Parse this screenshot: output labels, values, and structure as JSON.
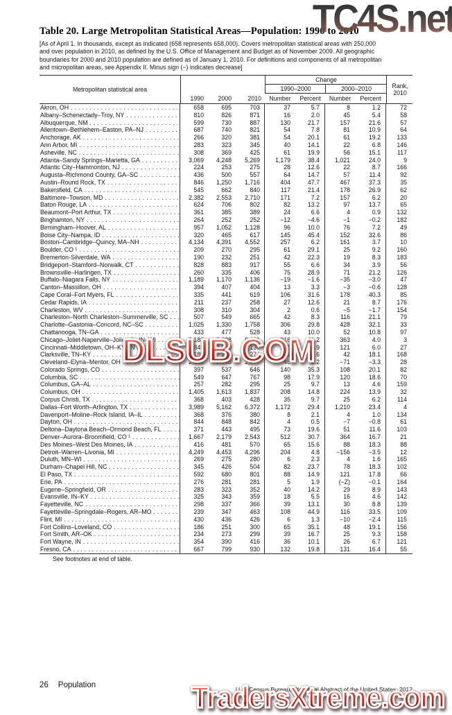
{
  "watermarks": {
    "top": "TC4S.net",
    "middle": "DLSUB.COM",
    "bottom": "TradersXtreme.com"
  },
  "title": "Table 20. Large Metropolitan Statistical Areas—Population: 1990 to 2010",
  "note_lines": [
    "[As of April 1. In thousands, except as indicated (658 represents 658,000). Covers metropolitan statistical areas with 250,000",
    "and over population in 2010, as defined by the U.S. Office of Management and Budget as of November 2009. All geographic",
    "boundaries for 2000 and 2010 population are defined as of January 1, 2010. For definitions and components of all metropolitan",
    "and micropolitan areas, see Appendix II. Minus sign (−) indicates decrease]"
  ],
  "table": {
    "header": {
      "area": "Metropolitan statistical area",
      "change": "Change",
      "span_1990_2000": "1990–2000",
      "span_2000_2010": "2000–2010",
      "y1990": "1990",
      "y2000": "2000",
      "y2010": "2010",
      "number": "Number",
      "percent": "Percent",
      "rank_line1": "Rank,",
      "rank_line2": "2010"
    },
    "rows": [
      [
        "Akron, OH",
        "658",
        "695",
        "703",
        "37",
        "5.7",
        "8",
        "1.2",
        "72"
      ],
      [
        "Albany–Schenectady–Troy, NY",
        "810",
        "826",
        "871",
        "16",
        "2.0",
        "45",
        "5.4",
        "58"
      ],
      [
        "Albuquerque, NM",
        "599",
        "730",
        "887",
        "130",
        "21.7",
        "157",
        "21.6",
        "57"
      ],
      [
        "Allentown–Bethlehem–Easton, PA–NJ",
        "687",
        "740",
        "821",
        "54",
        "7.8",
        "81",
        "10.9",
        "64"
      ],
      [
        "Anchorage, AK",
        "266",
        "320",
        "381",
        "54",
        "20.1",
        "61",
        "19.2",
        "133"
      ],
      [
        "Ann Arbor, MI",
        "283",
        "323",
        "345",
        "40",
        "14.1",
        "22",
        "6.8",
        "146"
      ],
      [
        "Asheville, NC",
        "308",
        "369",
        "425",
        "61",
        "19.9",
        "56",
        "15.1",
        "117"
      ],
      [
        "Atlanta–Sandy Springs–Marietta, GA",
        "3,069",
        "4,248",
        "5,269",
        "1,179",
        "38.4",
        "1,021",
        "24.0",
        "9"
      ],
      [
        "Atlantic City–Hammonton, NJ",
        "224",
        "253",
        "275",
        "28",
        "12.6",
        "22",
        "8.7",
        "166"
      ],
      [
        "Augusta–Richmond County, GA–SC",
        "436",
        "500",
        "557",
        "64",
        "14.7",
        "57",
        "11.4",
        "92"
      ],
      [
        "Austin–Round Rock, TX",
        "846",
        "1,250",
        "1,716",
        "404",
        "47.7",
        "467",
        "37.3",
        "35"
      ],
      [
        "Bakersfield, CA",
        "545",
        "662",
        "840",
        "117",
        "21.4",
        "178",
        "26.9",
        "62"
      ],
      [
        "Baltimore–Towson, MD",
        "2,382",
        "2,553",
        "2,710",
        "171",
        "7.2",
        "157",
        "6.2",
        "20"
      ],
      [
        "Baton Rouge, LA",
        "624",
        "706",
        "802",
        "82",
        "13.2",
        "97",
        "13.7",
        "65"
      ],
      [
        "Beaumont–Port Arthur, TX",
        "361",
        "385",
        "389",
        "24",
        "6.6",
        "4",
        "0.9",
        "132"
      ],
      [
        "Binghamton, NY",
        "264",
        "252",
        "252",
        "−12",
        "−4.6",
        "−1",
        "−0.2",
        "182"
      ],
      [
        "Birmingham–Hoover, AL",
        "957",
        "1,052",
        "1,128",
        "96",
        "10.0",
        "76",
        "7.2",
        "49"
      ],
      [
        "Boise City–Nampa, ID",
        "320",
        "465",
        "617",
        "145",
        "45.4",
        "152",
        "32.6",
        "86"
      ],
      [
        "Boston–Cambridge–Quincy, MA–NH",
        "4,134",
        "4,391",
        "4,552",
        "257",
        "6.2",
        "161",
        "3.7",
        "10"
      ],
      [
        "Boulder, CO ¹",
        "209",
        "270",
        "295",
        "61",
        "29.1",
        "25",
        "9.2",
        "160"
      ],
      [
        "Bremerton-Silverdale, WA",
        "190",
        "232",
        "251",
        "42",
        "22.3",
        "19",
        "8.3",
        "183"
      ],
      [
        "Bridgeport–Stamford–Norwalk, CT",
        "828",
        "883",
        "917",
        "55",
        "6.6",
        "34",
        "3.9",
        "56"
      ],
      [
        "Brownsville–Harlingen, TX",
        "260",
        "335",
        "406",
        "75",
        "28.9",
        "71",
        "21.2",
        "126"
      ],
      [
        "Buffalo–Niagara Falls, NY",
        "1,189",
        "1,170",
        "1,136",
        "−19",
        "−1.6",
        "−35",
        "−3.0",
        "47"
      ],
      [
        "Canton–Massillon, OH",
        "394",
        "407",
        "404",
        "13",
        "3.3",
        "−3",
        "−0.6",
        "128"
      ],
      [
        "Cape Coral–Fort Myers, FL",
        "335",
        "441",
        "619",
        "106",
        "31.6",
        "178",
        "40.3",
        "85"
      ],
      [
        "Cedar Rapids, IA",
        "211",
        "237",
        "258",
        "27",
        "12.6",
        "21",
        "8.7",
        "176"
      ],
      [
        "Charleston, WV",
        "308",
        "310",
        "304",
        "2",
        "0.6",
        "−5",
        "−1.7",
        "154"
      ],
      [
        "Charleston–North Charleston–Summerville, SC",
        "507",
        "549",
        "665",
        "42",
        "8.3",
        "116",
        "21.1",
        "79"
      ],
      [
        "Charlotte–Gastonia–Concord, NC–SC",
        "1,025",
        "1,330",
        "1,758",
        "306",
        "29.8",
        "428",
        "32.1",
        "33"
      ],
      [
        "Chattanooga, TN–GA",
        "433",
        "477",
        "528",
        "43",
        "10.0",
        "52",
        "10.8",
        "97"
      ],
      [
        "Chicago–Joliet-Naperville–Joliet, IL–IN–WI",
        "8,182",
        "9,098",
        "9,461",
        "916",
        "11.2",
        "363",
        "4.0",
        "3"
      ],
      [
        "Cincinnati–Middletown, OH–KY–IN",
        "1,845",
        "2,010",
        "2,130",
        "165",
        "8.9",
        "121",
        "6.0",
        "27"
      ],
      [
        "Clarksville, TN–KY",
        "189",
        "232",
        "274",
        "43",
        "22.6",
        "42",
        "18.1",
        "168"
      ],
      [
        "Cleveland–Elyria–Mentor, OH",
        "2,102",
        "2,148",
        "2,077",
        "46",
        "2.2",
        "−71",
        "−3.3",
        "28"
      ],
      [
        "Colorado Springs, CO",
        "397",
        "537",
        "646",
        "140",
        "35.3",
        "108",
        "20.1",
        "82"
      ],
      [
        "Columbia, SC",
        "549",
        "647",
        "767",
        "98",
        "17.9",
        "120",
        "18.6",
        "70"
      ],
      [
        "Columbus, GA–AL",
        "257",
        "282",
        "295",
        "25",
        "9.7",
        "13",
        "4.6",
        "159"
      ],
      [
        "Columbus, OH",
        "1,405",
        "1,613",
        "1,837",
        "208",
        "14.8",
        "224",
        "13.9",
        "32"
      ],
      [
        "Corpus Christi, TX",
        "368",
        "403",
        "428",
        "35",
        "9.7",
        "25",
        "6.2",
        "114"
      ],
      [
        "Dallas–Fort Worth–Arlington, TX",
        "3,989",
        "5,162",
        "6,372",
        "1,172",
        "29.4",
        "1,210",
        "23.4",
        "4"
      ],
      [
        "Davenport–Moline–Rock Island, IA–IL",
        "368",
        "376",
        "380",
        "8",
        "2.1",
        "4",
        "1.0",
        "134"
      ],
      [
        "Dayton, OH",
        "844",
        "848",
        "842",
        "4",
        "0.5",
        "−7",
        "−0.8",
        "61"
      ],
      [
        "Deltona–Daytona Beach–Ormond Beach, FL",
        "371",
        "443",
        "495",
        "73",
        "19.6",
        "51",
        "11.6",
        "103"
      ],
      [
        "Denver–Aurora–Broomfield, CO ¹",
        "1,667",
        "2,179",
        "2,543",
        "512",
        "30.7",
        "364",
        "16.7",
        "21"
      ],
      [
        "Des Moines–West Des Moines, IA",
        "416",
        "481",
        "570",
        "65",
        "15.6",
        "88",
        "18.3",
        "88"
      ],
      [
        "Detroit–Warren–Livonia, MI",
        "4,249",
        "4,453",
        "4,296",
        "204",
        "4.8",
        "−156",
        "−3.5",
        "12"
      ],
      [
        "Duluth, MN–WI",
        "269",
        "275",
        "280",
        "6",
        "2.3",
        "4",
        "1.6",
        "165"
      ],
      [
        "Durham–Chapel Hill, NC",
        "345",
        "426",
        "504",
        "82",
        "23.7",
        "78",
        "18.3",
        "102"
      ],
      [
        "El Paso, TX",
        "592",
        "680",
        "801",
        "88",
        "14.9",
        "121",
        "17.8",
        "66"
      ],
      [
        "Erie, PA",
        "276",
        "281",
        "281",
        "5",
        "1.9",
        "(−Z)",
        "−0.1",
        "164"
      ],
      [
        "Eugene–Springfield, OR",
        "283",
        "323",
        "352",
        "40",
        "14.2",
        "29",
        "8.9",
        "143"
      ],
      [
        "Evansville, IN–KY",
        "325",
        "343",
        "359",
        "18",
        "5.5",
        "16",
        "4.6",
        "142"
      ],
      [
        "Fayetteville, NC",
        "298",
        "337",
        "366",
        "39",
        "13.1",
        "30",
        "8.8",
        "139"
      ],
      [
        "Fayetteville–Springdale–Rogers, AR–MO",
        "239",
        "347",
        "463",
        "108",
        "44.9",
        "116",
        "33.5",
        "109"
      ],
      [
        "Flint, MI",
        "430",
        "436",
        "426",
        "6",
        "1.3",
        "−10",
        "−2.4",
        "115"
      ],
      [
        "Fort Collins–Loveland, CO",
        "186",
        "251",
        "300",
        "65",
        "35.1",
        "48",
        "19.1",
        "156"
      ],
      [
        "Fort Smith, AR–OK",
        "234",
        "273",
        "299",
        "39",
        "16.7",
        "25",
        "9.3",
        "158"
      ],
      [
        "Fort Wayne, IN",
        "354",
        "390",
        "416",
        "36",
        "10.1",
        "26",
        "6.7",
        "121"
      ],
      [
        "Fresno, CA",
        "667",
        "799",
        "930",
        "132",
        "19.8",
        "131",
        "16.4",
        "55"
      ]
    ]
  },
  "footnote": "See footnotes at end of table.",
  "footer": {
    "page_number": "26",
    "section": "Population",
    "source": "U.S. Census Bureau, Statistical Abstract of the United States: 2012"
  }
}
